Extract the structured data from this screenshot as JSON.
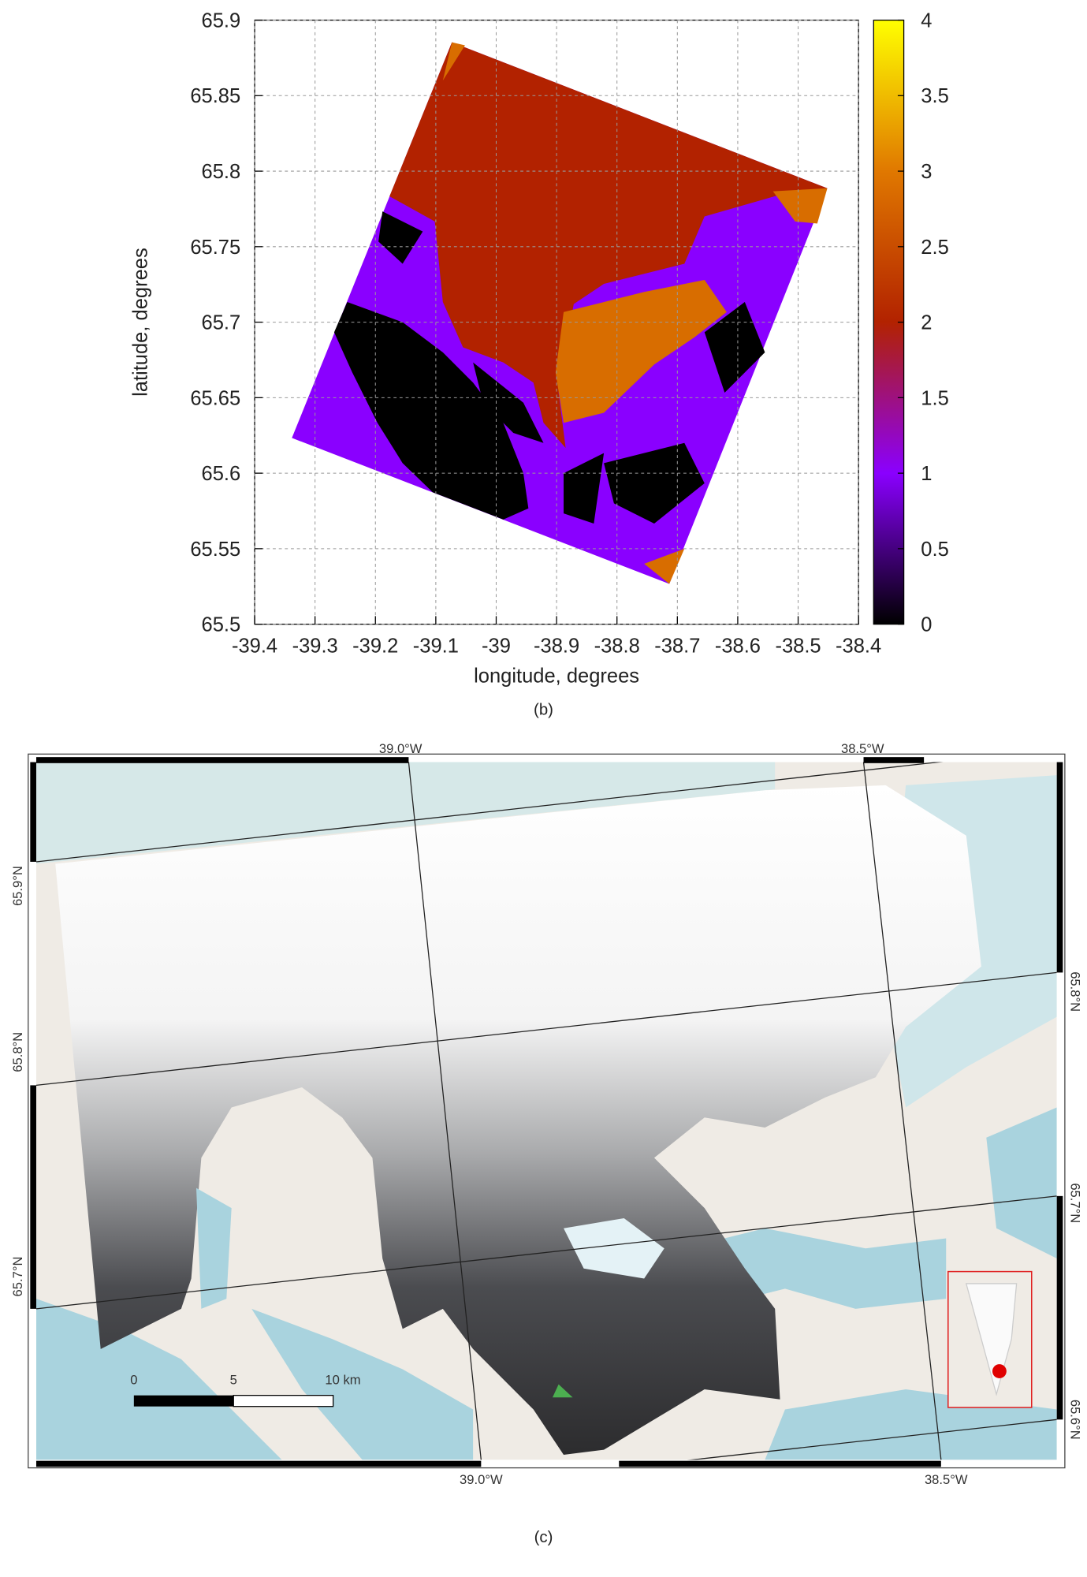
{
  "chart_data": {
    "type": "raster",
    "xlabel": "longitude, degrees",
    "ylabel": "latitude, degrees",
    "xlim": [
      -39.4,
      -38.4
    ],
    "ylim": [
      65.5,
      65.9
    ],
    "xticks": [
      -39.4,
      -39.3,
      -39.2,
      -39.1,
      -39,
      -38.9,
      -38.8,
      -38.7,
      -38.6,
      -38.5,
      -38.4
    ],
    "yticks": [
      65.5,
      65.55,
      65.6,
      65.65,
      65.7,
      65.75,
      65.8,
      65.85,
      65.9
    ],
    "grid": true,
    "colorbar": {
      "lim": [
        0,
        4
      ],
      "ticks": [
        0,
        0.5,
        1,
        1.5,
        2,
        2.5,
        3,
        3.5,
        4
      ],
      "colors": [
        "#000000",
        "#8a00ff",
        "#b22200",
        "#e07800",
        "#ffff00"
      ]
    }
  },
  "captions": {
    "b": "(b)",
    "c": "(c)"
  },
  "map": {
    "top_labels": [
      "39.0°W",
      "38.5°W"
    ],
    "bottom_labels": [
      "39.0°W",
      "38.5°W"
    ],
    "left_labels": [
      "65.9°N",
      "65.8°N",
      "65.7°N"
    ],
    "right_labels": [
      "65.8°N",
      "65.7°N",
      "65.6°N"
    ],
    "scale_bar": [
      "0",
      "5",
      "10 km"
    ]
  }
}
